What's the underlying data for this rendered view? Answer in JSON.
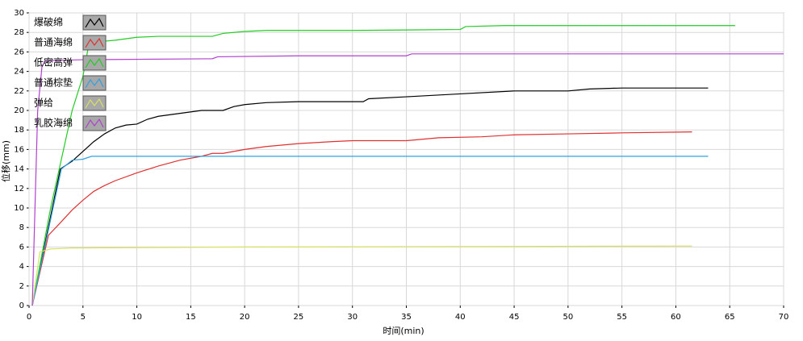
{
  "chart_data": {
    "type": "line",
    "xlabel": "时间(min)",
    "ylabel": "位移(mm)",
    "xlim": [
      0,
      70
    ],
    "xticks": [
      0,
      5,
      10,
      15,
      20,
      25,
      30,
      35,
      40,
      45,
      50,
      55,
      60,
      65,
      70
    ],
    "ylim": [
      0,
      30
    ],
    "yticks": [
      0,
      2,
      4,
      6,
      8,
      10,
      12,
      14,
      16,
      18,
      20,
      22,
      24,
      26,
      28,
      30
    ],
    "grid": true,
    "legend": "upper left",
    "series": [
      {
        "name": "爆破绵",
        "color": "#000000",
        "x": [
          0.3,
          2.9,
          4,
          5,
          6,
          7,
          8,
          9,
          10,
          11,
          12,
          14,
          16,
          18,
          19,
          20,
          22,
          25,
          31,
          31.5,
          35,
          40,
          45,
          50,
          52,
          55,
          63
        ],
        "values": [
          0,
          14,
          14.8,
          15.8,
          16.8,
          17.6,
          18.2,
          18.5,
          18.6,
          19.1,
          19.4,
          19.7,
          20,
          20,
          20.4,
          20.6,
          20.8,
          20.9,
          20.9,
          21.2,
          21.4,
          21.7,
          22,
          22,
          22.2,
          22.3,
          22.3
        ]
      },
      {
        "name": "普通海绵",
        "color": "#e03030",
        "x": [
          0.3,
          1.8,
          3,
          4,
          5,
          6,
          7,
          8,
          10,
          12,
          14,
          16,
          17,
          18,
          20,
          22,
          25,
          28,
          30,
          35,
          38,
          42,
          45,
          50,
          55,
          61.5
        ],
        "values": [
          0,
          7.2,
          8.6,
          9.8,
          10.8,
          11.7,
          12.3,
          12.8,
          13.6,
          14.3,
          14.9,
          15.3,
          15.6,
          15.6,
          16,
          16.3,
          16.6,
          16.8,
          16.9,
          16.9,
          17.2,
          17.3,
          17.5,
          17.6,
          17.7,
          17.8
        ]
      },
      {
        "name": "低密高弹",
        "color": "#22cc22",
        "x": [
          0.3,
          2,
          4,
          5,
          5.5,
          6,
          8,
          10,
          12,
          17,
          18,
          20,
          22,
          30,
          40,
          40.5,
          44,
          65.5
        ],
        "values": [
          0,
          10,
          20,
          23.5,
          26.5,
          27,
          27.2,
          27.5,
          27.6,
          27.6,
          27.9,
          28.1,
          28.2,
          28.2,
          28.3,
          28.6,
          28.7,
          28.7
        ]
      },
      {
        "name": "普通棕垫",
        "color": "#30a0e0",
        "x": [
          0.3,
          3,
          4,
          5,
          5.8,
          10,
          63
        ],
        "values": [
          0,
          14,
          14.9,
          15,
          15.3,
          15.3,
          15.3
        ]
      },
      {
        "name": "弹给",
        "color": "#d8e060",
        "x": [
          0.3,
          1,
          2,
          4,
          20,
          61.5
        ],
        "values": [
          0,
          5.5,
          5.8,
          5.9,
          6,
          6.1
        ]
      },
      {
        "name": "乳胶海绵",
        "color": "#b040d0",
        "x": [
          0.3,
          0.8,
          1.2,
          1.5,
          5,
          17,
          17.5,
          25,
          35,
          35.5,
          70
        ],
        "values": [
          0,
          20,
          24.5,
          25.1,
          25.2,
          25.3,
          25.5,
          25.6,
          25.6,
          25.8,
          25.8
        ]
      }
    ]
  }
}
